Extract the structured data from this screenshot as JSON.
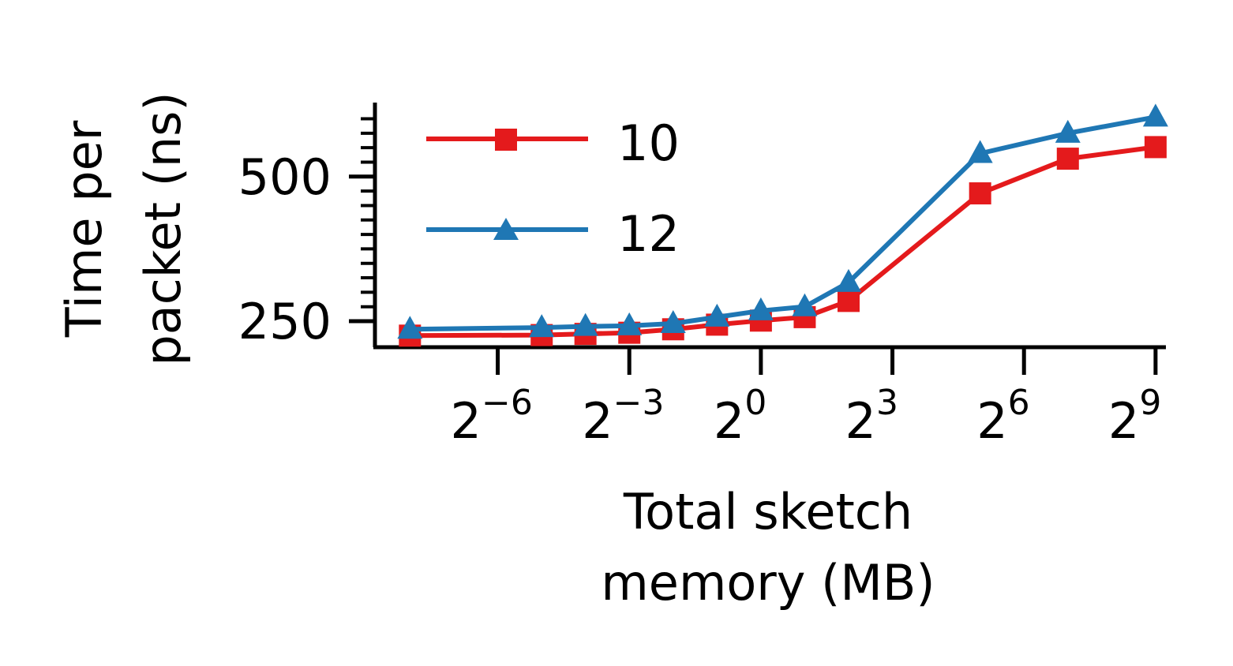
{
  "chart_data": {
    "type": "line",
    "xscale": "log2",
    "xlabel_lines": [
      "Total sketch",
      "memory (MB)"
    ],
    "ylabel_lines": [
      "Time per",
      "packet (ns)"
    ],
    "xlim": [
      -8.8,
      9.2
    ],
    "ylim": [
      205,
      628
    ],
    "xticks": [
      {
        "exp": -6,
        "base": "2",
        "sup": "−6"
      },
      {
        "exp": -3,
        "base": "2",
        "sup": "−3"
      },
      {
        "exp": 0,
        "base": "2",
        "sup": "0"
      },
      {
        "exp": 3,
        "base": "2",
        "sup": "3"
      },
      {
        "exp": 6,
        "base": "2",
        "sup": "6"
      },
      {
        "exp": 9,
        "base": "2",
        "sup": "9"
      }
    ],
    "yticks": [
      250,
      500
    ],
    "yminor_ticks": [
      275,
      300,
      325,
      350,
      375,
      400,
      425,
      450,
      475,
      525,
      550,
      575,
      600
    ],
    "legend_position": "upper-left",
    "series": [
      {
        "name": "10",
        "color": "#e41a1c",
        "marker": "square",
        "points": [
          {
            "x": 0.0039,
            "y": 225
          },
          {
            "x": 0.0313,
            "y": 226
          },
          {
            "x": 0.0625,
            "y": 228
          },
          {
            "x": 0.125,
            "y": 230
          },
          {
            "x": 0.25,
            "y": 236
          },
          {
            "x": 0.5,
            "y": 244
          },
          {
            "x": 1,
            "y": 251
          },
          {
            "x": 2,
            "y": 257
          },
          {
            "x": 4,
            "y": 285
          },
          {
            "x": 32,
            "y": 471
          },
          {
            "x": 128,
            "y": 531
          },
          {
            "x": 512,
            "y": 551
          }
        ]
      },
      {
        "name": "12",
        "color": "#1f77b4",
        "marker": "triangle",
        "points": [
          {
            "x": 0.0039,
            "y": 236
          },
          {
            "x": 0.0313,
            "y": 239
          },
          {
            "x": 0.0625,
            "y": 241
          },
          {
            "x": 0.125,
            "y": 242
          },
          {
            "x": 0.25,
            "y": 246
          },
          {
            "x": 0.5,
            "y": 257
          },
          {
            "x": 1,
            "y": 268
          },
          {
            "x": 2,
            "y": 275
          },
          {
            "x": 4,
            "y": 317
          },
          {
            "x": 32,
            "y": 540
          },
          {
            "x": 128,
            "y": 575
          },
          {
            "x": 512,
            "y": 603
          }
        ]
      }
    ]
  }
}
